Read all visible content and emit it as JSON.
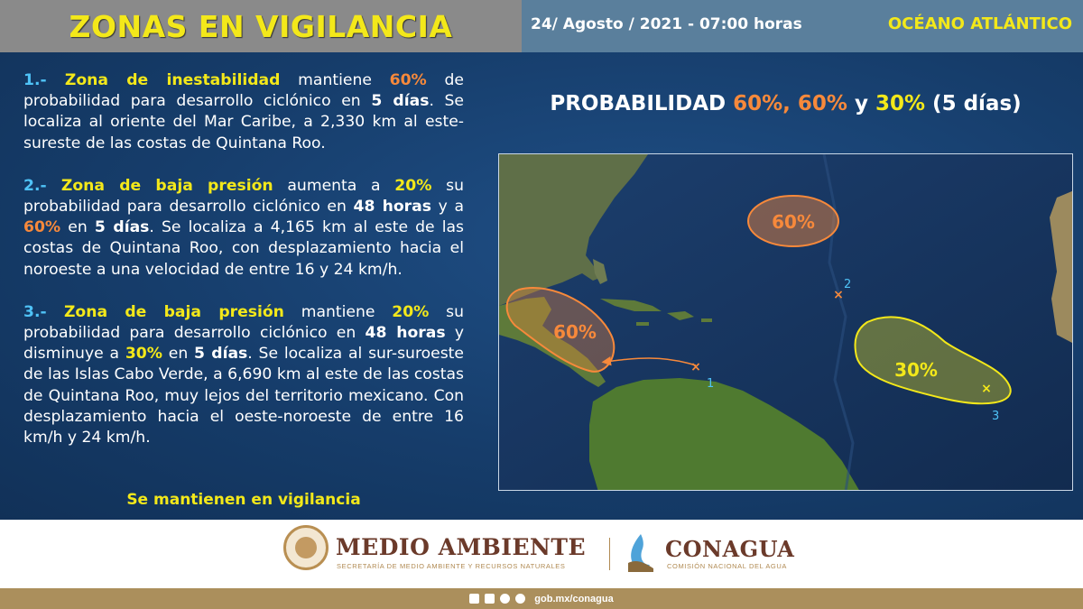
{
  "header": {
    "title": "ZONAS EN VIGILANCIA",
    "date": "24/ Agosto / 2021 - 07:00 horas",
    "ocean": "OCÉANO ATLÁNTICO"
  },
  "zones": [
    {
      "num": "1.-",
      "parts": [
        {
          "t": "Zona de inestabilidad",
          "c": "y"
        },
        {
          "t": " mantiene ",
          "c": ""
        },
        {
          "t": "60%",
          "c": "o"
        },
        {
          "t": " de probabilidad para desarrollo ciclónico en ",
          "c": ""
        },
        {
          "t": "5 días",
          "c": "w"
        },
        {
          "t": ". Se localiza al oriente del Mar Caribe, a 2,330 km al este-sureste de las costas de Quintana Roo.",
          "c": ""
        }
      ]
    },
    {
      "num": "2.-",
      "parts": [
        {
          "t": "Zona de baja presión",
          "c": "y"
        },
        {
          "t": " aumenta a ",
          "c": ""
        },
        {
          "t": "20%",
          "c": "y"
        },
        {
          "t": " su probabilidad para desarrollo ciclónico en ",
          "c": ""
        },
        {
          "t": "48 horas",
          "c": "w"
        },
        {
          "t": " y a ",
          "c": ""
        },
        {
          "t": "60%",
          "c": "o"
        },
        {
          "t": " en ",
          "c": ""
        },
        {
          "t": "5 días",
          "c": "w"
        },
        {
          "t": ". Se localiza a 4,165 km al este de las costas de Quintana Roo, con desplazamiento hacia el noroeste a una velocidad de entre 16 y 24 km/h.",
          "c": ""
        }
      ]
    },
    {
      "num": "3.-",
      "parts": [
        {
          "t": "Zona de baja presión",
          "c": "y"
        },
        {
          "t": " mantiene ",
          "c": ""
        },
        {
          "t": "20%",
          "c": "y"
        },
        {
          "t": " su probabilidad para desarrollo ciclónico en ",
          "c": ""
        },
        {
          "t": "48 horas",
          "c": "w"
        },
        {
          "t": " y disminuye a ",
          "c": ""
        },
        {
          "t": "30%",
          "c": "y"
        },
        {
          "t": " en ",
          "c": ""
        },
        {
          "t": "5 días",
          "c": "w"
        },
        {
          "t": ". Se localiza al sur-suroeste de las Islas Cabo Verde, a 6,690 km al este de las costas de Quintana Roo, muy lejos del territorio mexicano. Con desplazamiento hacia el oeste-noroeste de entre 16 km/h y 24 km/h.",
          "c": ""
        }
      ]
    }
  ],
  "footer_note": "Se mantienen en vigilancia",
  "probability": {
    "prefix": "PROBABILIDAD ",
    "p1": "60%,",
    "p2": "60%",
    "mid": " y ",
    "p3": "30%",
    "suffix": " (5 días)"
  },
  "map": {
    "areas": [
      {
        "label": "60%",
        "color": "#f7893b"
      },
      {
        "label": "60%",
        "color": "#f7893b"
      },
      {
        "label": "30%",
        "color": "#f3e81a"
      }
    ],
    "markers": [
      "1",
      "2",
      "3"
    ]
  },
  "footer": {
    "ma_name": "MEDIO AMBIENTE",
    "ma_sub": "SECRETARÍA DE MEDIO AMBIENTE Y RECURSOS NATURALES",
    "cn_name": "CONAGUA",
    "cn_sub": "COMISIÓN NACIONAL DEL AGUA",
    "social_url": "gob.mx/conagua"
  },
  "colors": {
    "accent_yellow": "#f3e81a",
    "accent_orange": "#f7893b",
    "panel_blue": "#163d6b",
    "number_blue": "#4fc3f7"
  }
}
